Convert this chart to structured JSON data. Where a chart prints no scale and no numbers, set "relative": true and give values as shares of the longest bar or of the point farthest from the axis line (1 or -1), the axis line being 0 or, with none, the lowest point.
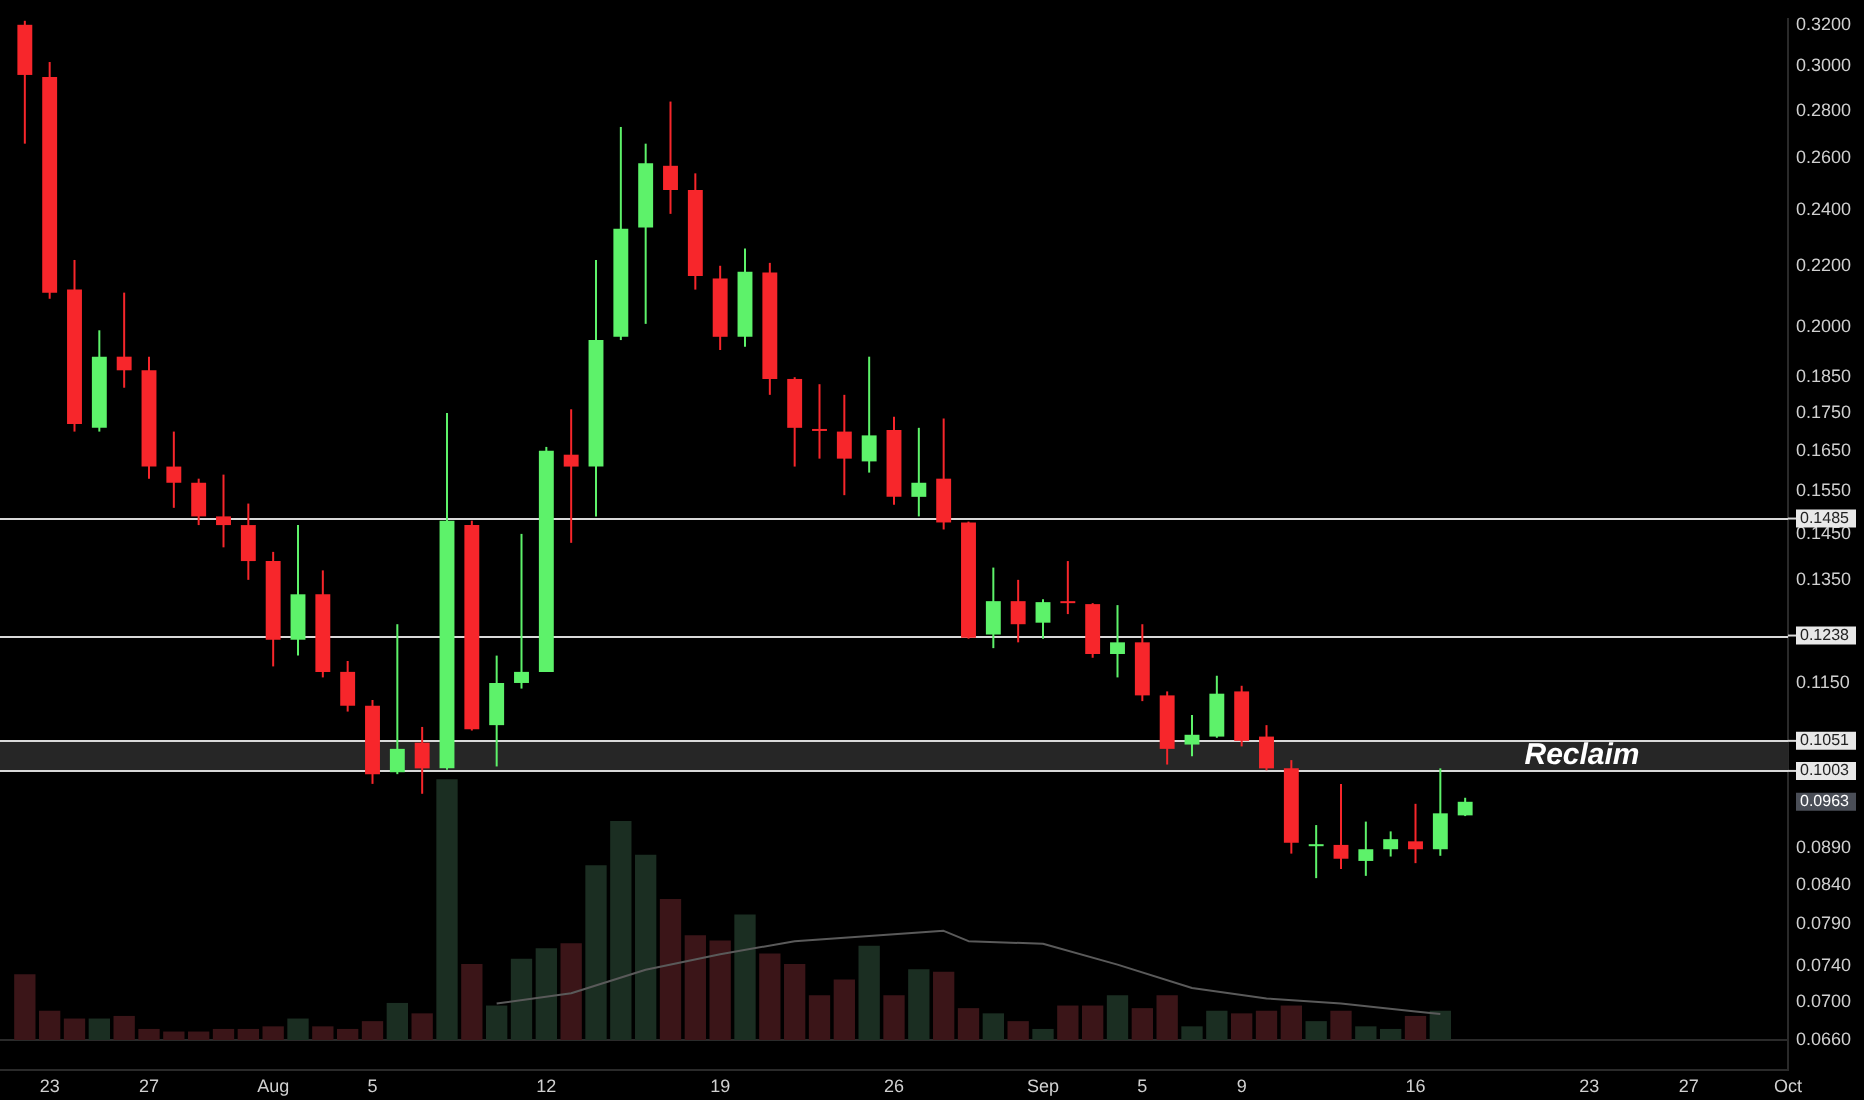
{
  "chart_data": [
    {
      "type": "candlestick",
      "log": true,
      "x": [
        "--07-22",
        "--07-23",
        "--07-24",
        "--07-25",
        "--07-26",
        "--07-27",
        "--07-28",
        "--07-29",
        "--07-30",
        "--07-31",
        "--08-01",
        "--08-02",
        "--08-03",
        "--08-04",
        "--08-05",
        "--08-06",
        "--08-07",
        "--08-08",
        "--08-09",
        "--08-10",
        "--08-11",
        "--08-12",
        "--08-13",
        "--08-14",
        "--08-15",
        "--08-16",
        "--08-17",
        "--08-18",
        "--08-19",
        "--08-20",
        "--08-21",
        "--08-22",
        "--08-23",
        "--08-24",
        "--08-25",
        "--08-26",
        "--08-27",
        "--08-28",
        "--08-29",
        "--08-30",
        "--08-31",
        "--09-01",
        "--09-02",
        "--09-03",
        "--09-04",
        "--09-05",
        "--09-06",
        "--09-07",
        "--09-08",
        "--09-09",
        "--09-10",
        "--09-11",
        "--09-12",
        "--09-13",
        "--09-14",
        "--09-15",
        "--09-16",
        "--09-17",
        "--09-18"
      ],
      "ohlc": [
        [
          0.32,
          0.322,
          0.266,
          0.296
        ],
        [
          0.295,
          0.302,
          0.209,
          0.211
        ],
        [
          0.212,
          0.222,
          0.17,
          0.172
        ],
        [
          0.171,
          0.199,
          0.17,
          0.191
        ],
        [
          0.191,
          0.211,
          0.182,
          0.187
        ],
        [
          0.187,
          0.191,
          0.158,
          0.161
        ],
        [
          0.161,
          0.17,
          0.151,
          0.157
        ],
        [
          0.157,
          0.158,
          0.147,
          0.149
        ],
        [
          0.149,
          0.159,
          0.142,
          0.147
        ],
        [
          0.147,
          0.152,
          0.135,
          0.139
        ],
        [
          0.139,
          0.141,
          0.118,
          0.123
        ],
        [
          0.123,
          0.147,
          0.12,
          0.132
        ],
        [
          0.132,
          0.137,
          0.116,
          0.117
        ],
        [
          0.117,
          0.119,
          0.11,
          0.111
        ],
        [
          0.111,
          0.112,
          0.0983,
          0.0998
        ],
        [
          0.1001,
          0.126,
          0.0998,
          0.1038
        ],
        [
          0.1048,
          0.1074,
          0.0968,
          0.1007
        ],
        [
          0.1007,
          0.175,
          0.1005,
          0.148
        ],
        [
          0.147,
          0.148,
          0.1068,
          0.107
        ],
        [
          0.1077,
          0.12,
          0.101,
          0.115
        ],
        [
          0.115,
          0.145,
          0.114,
          0.117
        ],
        [
          0.117,
          0.166,
          0.117,
          0.165
        ],
        [
          0.164,
          0.176,
          0.143,
          0.161
        ],
        [
          0.161,
          0.222,
          0.149,
          0.196
        ],
        [
          0.197,
          0.273,
          0.196,
          0.233
        ],
        [
          0.2335,
          0.266,
          0.201,
          0.258
        ],
        [
          0.257,
          0.284,
          0.2385,
          0.2475
        ],
        [
          0.2475,
          0.254,
          0.212,
          0.2165
        ],
        [
          0.2157,
          0.22,
          0.193,
          0.197
        ],
        [
          0.197,
          0.226,
          0.194,
          0.218
        ],
        [
          0.2177,
          0.221,
          0.18,
          0.1845
        ],
        [
          0.1845,
          0.185,
          0.161,
          0.171
        ],
        [
          0.1707,
          0.183,
          0.163,
          0.1702
        ],
        [
          0.17,
          0.18,
          0.154,
          0.163
        ],
        [
          0.1623,
          0.191,
          0.1595,
          0.169
        ],
        [
          0.1704,
          0.174,
          0.1517,
          0.1536
        ],
        [
          0.1536,
          0.171,
          0.149,
          0.157
        ],
        [
          0.158,
          0.1735,
          0.146,
          0.1476
        ],
        [
          0.1476,
          0.1478,
          0.1232,
          0.1234
        ],
        [
          0.124,
          0.1376,
          0.1214,
          0.1306
        ],
        [
          0.1306,
          0.135,
          0.1225,
          0.126
        ],
        [
          0.1263,
          0.131,
          0.1232,
          0.1304
        ],
        [
          0.1306,
          0.139,
          0.128,
          0.1302
        ],
        [
          0.13,
          0.1302,
          0.1196,
          0.1203
        ],
        [
          0.1203,
          0.1298,
          0.116,
          0.1225
        ],
        [
          0.1225,
          0.126,
          0.1118,
          0.1128
        ],
        [
          0.1128,
          0.1135,
          0.1013,
          0.1038
        ],
        [
          0.1045,
          0.1094,
          0.1026,
          0.1061
        ],
        [
          0.1058,
          0.1163,
          0.1056,
          0.1131
        ],
        [
          0.1135,
          0.1145,
          0.1042,
          0.1051
        ],
        [
          0.1058,
          0.1077,
          0.1004,
          0.1007
        ],
        [
          0.1007,
          0.102,
          0.0882,
          0.0897
        ],
        [
          0.0893,
          0.0922,
          0.0849,
          0.0895
        ],
        [
          0.0894,
          0.0983,
          0.0861,
          0.0875
        ],
        [
          0.0872,
          0.0927,
          0.0852,
          0.0888
        ],
        [
          0.0888,
          0.0913,
          0.0878,
          0.0902
        ],
        [
          0.0899,
          0.0953,
          0.0869,
          0.0888
        ],
        [
          0.0888,
          0.1007,
          0.0879,
          0.0939
        ],
        [
          0.0936,
          0.0962,
          0.0935,
          0.0956
        ]
      ],
      "colors": [
        "#f7262b",
        "#f7262b",
        "#f7262b",
        "#5df26a",
        "#f7262b",
        "#f7262b",
        "#f7262b",
        "#f7262b",
        "#f7262b",
        "#f7262b",
        "#f7262b",
        "#5df26a",
        "#f7262b",
        "#f7262b",
        "#f7262b",
        "#5df26a",
        "#f7262b",
        "#5df26a",
        "#f7262b",
        "#5df26a",
        "#5df26a",
        "#5df26a",
        "#f7262b",
        "#5df26a",
        "#5df26a",
        "#5df26a",
        "#f7262b",
        "#f7262b",
        "#f7262b",
        "#5df26a",
        "#f7262b",
        "#f7262b",
        "#f7262b",
        "#f7262b",
        "#5df26a",
        "#f7262b",
        "#5df26a",
        "#f7262b",
        "#f7262b",
        "#5df26a",
        "#f7262b",
        "#5df26a",
        "#f7262b",
        "#f7262b",
        "#5df26a",
        "#f7262b",
        "#f7262b",
        "#5df26a",
        "#5df26a",
        "#f7262b",
        "#f7262b",
        "#f7262b",
        "#5df26a",
        "#f7262b",
        "#5df26a",
        "#5df26a",
        "#f7262b",
        "#5df26a",
        "#5df26a"
      ],
      "xlim": [
        "--07-21",
        "--10-01"
      ],
      "xticks": [
        {
          "value": "--07-23",
          "label": "23"
        },
        {
          "value": "--07-27",
          "label": "27"
        },
        {
          "value": "--08-01",
          "label": "Aug"
        },
        {
          "value": "--08-05",
          "label": "5"
        },
        {
          "value": "--08-12",
          "label": "12"
        },
        {
          "value": "--08-19",
          "label": "19"
        },
        {
          "value": "--08-26",
          "label": "26"
        },
        {
          "value": "--09-01",
          "label": "Sep"
        },
        {
          "value": "--09-05",
          "label": "5"
        },
        {
          "value": "--09-09",
          "label": "9"
        },
        {
          "value": "--09-16",
          "label": "16"
        },
        {
          "value": "--09-23",
          "label": "23"
        },
        {
          "value": "--09-27",
          "label": "27"
        },
        {
          "value": "--10-01",
          "label": "Oct"
        }
      ],
      "ylim": [
        0.063,
        0.323
      ],
      "yticks": [
        {
          "value": 0.32,
          "label": "0.3200"
        },
        {
          "value": 0.3,
          "label": "0.3000"
        },
        {
          "value": 0.28,
          "label": "0.2800"
        },
        {
          "value": 0.26,
          "label": "0.2600"
        },
        {
          "value": 0.24,
          "label": "0.2400"
        },
        {
          "value": 0.22,
          "label": "0.2200"
        },
        {
          "value": 0.2,
          "label": "0.2000"
        },
        {
          "value": 0.185,
          "label": "0.1850"
        },
        {
          "value": 0.175,
          "label": "0.1750"
        },
        {
          "value": 0.165,
          "label": "0.1650"
        },
        {
          "value": 0.155,
          "label": "0.1550"
        },
        {
          "value": 0.145,
          "label": "0.1450"
        },
        {
          "value": 0.135,
          "label": "0.1350"
        },
        {
          "value": 0.115,
          "label": "0.1150"
        },
        {
          "value": 0.089,
          "label": "0.0890"
        },
        {
          "value": 0.084,
          "label": "0.0840"
        },
        {
          "value": 0.079,
          "label": "0.0790"
        },
        {
          "value": 0.074,
          "label": "0.0740"
        },
        {
          "value": 0.07,
          "label": "0.0700"
        },
        {
          "value": 0.066,
          "label": "0.0660"
        }
      ],
      "ref_lines": [
        {
          "axis": "y",
          "value": 0.1485,
          "label": "0.1485",
          "color": "#d9d9d9"
        },
        {
          "axis": "y",
          "value": 0.1238,
          "label": "0.1238",
          "color": "#d9d9d9"
        },
        {
          "axis": "y",
          "value": 0.1051,
          "label": "0.1051",
          "color": "#d9d9d9"
        },
        {
          "axis": "y",
          "value": 0.1003,
          "label": "0.1003",
          "color": "#d9d9d9"
        }
      ],
      "bands": [
        {
          "axis": "y",
          "from": 0.1003,
          "to": 0.1051,
          "label": "Reclaim",
          "color": "#262626"
        }
      ],
      "annotations": [
        "0.0963"
      ]
    },
    {
      "type": "bar",
      "relative": true,
      "tick_labels": false,
      "x": [
        "--07-22",
        "--07-23",
        "--07-24",
        "--07-25",
        "--07-26",
        "--07-27",
        "--07-28",
        "--07-29",
        "--07-30",
        "--07-31",
        "--08-01",
        "--08-02",
        "--08-03",
        "--08-04",
        "--08-05",
        "--08-06",
        "--08-07",
        "--08-08",
        "--08-09",
        "--08-10",
        "--08-11",
        "--08-12",
        "--08-13",
        "--08-14",
        "--08-15",
        "--08-16",
        "--08-17",
        "--08-18",
        "--08-19",
        "--08-20",
        "--08-21",
        "--08-22",
        "--08-23",
        "--08-24",
        "--08-25",
        "--08-26",
        "--08-27",
        "--08-28",
        "--08-29",
        "--08-30",
        "--08-31",
        "--09-01",
        "--09-02",
        "--09-03",
        "--09-04",
        "--09-05",
        "--09-06",
        "--09-07",
        "--09-08",
        "--09-09",
        "--09-10",
        "--09-11",
        "--09-12",
        "--09-13",
        "--09-14",
        "--09-15",
        "--09-16",
        "--09-17"
      ],
      "xlim": [
        "--07-21",
        "--10-01"
      ],
      "series": [
        {
          "type": "bar",
          "values": [
            0.25,
            0.11,
            0.08,
            0.08,
            0.09,
            0.04,
            0.03,
            0.03,
            0.04,
            0.04,
            0.05,
            0.08,
            0.05,
            0.04,
            0.07,
            0.14,
            0.1,
            1,
            0.29,
            0.13,
            0.31,
            0.35,
            0.37,
            0.67,
            0.84,
            0.71,
            0.54,
            0.4,
            0.38,
            0.48,
            0.33,
            0.29,
            0.17,
            0.23,
            0.36,
            0.17,
            0.27,
            0.26,
            0.12,
            0.1,
            0.07,
            0.04,
            0.13,
            0.13,
            0.17,
            0.12,
            0.17,
            0.05,
            0.11,
            0.1,
            0.11,
            0.13,
            0.07,
            0.11,
            0.05,
            0.04,
            0.09,
            0.11
          ],
          "colors": [
            "#3b1518",
            "#3b1518",
            "#3b1518",
            "#1b2e22",
            "#3b1518",
            "#3b1518",
            "#3b1518",
            "#3b1518",
            "#3b1518",
            "#3b1518",
            "#3b1518",
            "#1b2e22",
            "#3b1518",
            "#3b1518",
            "#3b1518",
            "#1b2e22",
            "#3b1518",
            "#1b2e22",
            "#3b1518",
            "#1b2e22",
            "#1b2e22",
            "#1b2e22",
            "#3b1518",
            "#1b2e22",
            "#1b2e22",
            "#1b2e22",
            "#3b1518",
            "#3b1518",
            "#3b1518",
            "#1b2e22",
            "#3b1518",
            "#3b1518",
            "#3b1518",
            "#3b1518",
            "#1b2e22",
            "#3b1518",
            "#1b2e22",
            "#3b1518",
            "#3b1518",
            "#1b2e22",
            "#3b1518",
            "#1b2e22",
            "#3b1518",
            "#3b1518",
            "#1b2e22",
            "#3b1518",
            "#3b1518",
            "#1b2e22",
            "#1b2e22",
            "#3b1518",
            "#3b1518",
            "#3b1518",
            "#1b2e22",
            "#3b1518",
            "#1b2e22",
            "#1b2e22",
            "#3b1518",
            "#1b2e22"
          ]
        },
        {
          "type": "line",
          "color": "#5a5a5a",
          "x": [
            "--08-10",
            "--08-13",
            "--08-16",
            "--08-19",
            "--08-22",
            "--08-25",
            "--08-28",
            "--08-29",
            "--09-01",
            "--09-04",
            "--09-07",
            "--09-10",
            "--09-13",
            "--09-16",
            "--09-17"
          ],
          "values": [
            0.14,
            0.18,
            0.27,
            0.33,
            0.38,
            0.4,
            0.42,
            0.38,
            0.37,
            0.29,
            0.2,
            0.16,
            0.14,
            0.11,
            0.1
          ]
        }
      ]
    }
  ]
}
